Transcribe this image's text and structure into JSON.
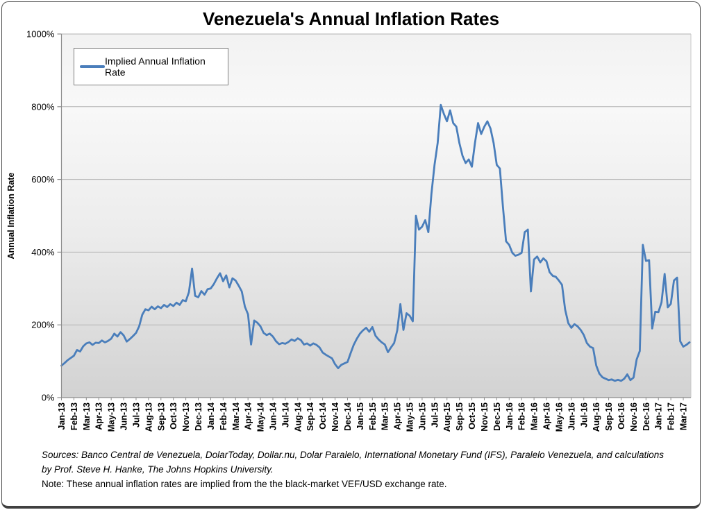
{
  "title": "Venezuela's Annual Inflation Rates",
  "legend": {
    "label": "Implied Annual Inflation Rate"
  },
  "y_axis": {
    "title": "Annual Inflation Rate",
    "ticks": [
      {
        "value": 0,
        "label": "0%"
      },
      {
        "value": 200,
        "label": "200%"
      },
      {
        "value": 400,
        "label": "400%"
      },
      {
        "value": 600,
        "label": "600%"
      },
      {
        "value": 800,
        "label": "800%"
      },
      {
        "value": 1000,
        "label": "1000%"
      }
    ]
  },
  "x_axis": {
    "labels": [
      "Jan-13",
      "Feb-13",
      "Mar-13",
      "Apr-13",
      "May-13",
      "Jun-13",
      "Jul-13",
      "Aug-13",
      "Sep-13",
      "Oct-13",
      "Nov-13",
      "Dec-13",
      "Jan-14",
      "Feb-14",
      "Mar-14",
      "Apr-14",
      "May-14",
      "Jun-14",
      "Jul-14",
      "Aug-14",
      "Sep-14",
      "Oct-14",
      "Nov-14",
      "Dec-14",
      "Jan-15",
      "Feb-15",
      "Mar-15",
      "Apr-15",
      "May-15",
      "Jun-15",
      "Jul-15",
      "Aug-15",
      "Sep-15",
      "Oct-15",
      "Nov-15",
      "Dec-15",
      "Jan-16",
      "Feb-16",
      "Mar-16",
      "Apr-16",
      "May-16",
      "Jun-16",
      "Jul-16",
      "Aug-16",
      "Sep-16",
      "Oct-16",
      "Nov-16",
      "Dec-16",
      "Jan-17",
      "Feb-17",
      "Mar-17"
    ]
  },
  "footer": {
    "sources": "Sources: Banco Central de Venezuela, DolarToday, Dollar.nu, Dolar Paralelo, International Monetary Fund (IFS), Paralelo Venezuela, and calculations by Prof. Steve H. Hanke, The Johns Hopkins University.",
    "note": "Note: These annual inflation rates are implied from the the black-market VEF/USD exchange rate."
  },
  "colors": {
    "line": "#4a7ebb",
    "gridline": "#b3b3b3",
    "axis": "#8c8c8c",
    "plot_right_edge": "#c9c9c9",
    "frame_border": "#4d4d4d",
    "legend_border": "#7f7f7f",
    "text": "#000000"
  },
  "chart_data": {
    "type": "line",
    "title": "Venezuela's Annual Inflation Rates",
    "xlabel": "",
    "ylabel": "Annual Inflation Rate",
    "ylim": [
      0,
      1000
    ],
    "y_tick_step": 200,
    "y_unit": "%",
    "x_range": [
      "Jan-13",
      "Mar-17"
    ],
    "points_per_month": 4,
    "grid": "horizontal",
    "legend_position": "top-left-inside",
    "series": [
      {
        "name": "Implied Annual Inflation Rate",
        "values": [
          88,
          95,
          103,
          109,
          115,
          131,
          127,
          141,
          149,
          152,
          145,
          151,
          150,
          157,
          152,
          156,
          162,
          176,
          168,
          180,
          171,
          154,
          161,
          169,
          178,
          196,
          228,
          243,
          240,
          250,
          243,
          251,
          246,
          255,
          249,
          257,
          252,
          261,
          255,
          268,
          265,
          290,
          355,
          280,
          276,
          293,
          283,
          298,
          300,
          312,
          328,
          342,
          320,
          336,
          303,
          328,
          322,
          308,
          292,
          250,
          229,
          146,
          212,
          206,
          196,
          178,
          172,
          176,
          168,
          155,
          147,
          150,
          148,
          153,
          160,
          156,
          163,
          158,
          146,
          149,
          143,
          149,
          145,
          138,
          124,
          118,
          113,
          108,
          92,
          81,
          90,
          94,
          98,
          122,
          145,
          162,
          176,
          185,
          192,
          181,
          194,
          170,
          160,
          152,
          146,
          125,
          138,
          150,
          185,
          257,
          186,
          232,
          225,
          210,
          500,
          462,
          470,
          488,
          455,
          560,
          640,
          700,
          805,
          780,
          760,
          790,
          755,
          745,
          700,
          665,
          645,
          655,
          635,
          700,
          755,
          725,
          745,
          760,
          740,
          700,
          640,
          630,
          525,
          430,
          420,
          398,
          390,
          393,
          398,
          455,
          462,
          292,
          380,
          388,
          372,
          383,
          375,
          345,
          335,
          332,
          322,
          310,
          242,
          205,
          192,
          202,
          196,
          186,
          172,
          150,
          140,
          136,
          88,
          66,
          56,
          52,
          48,
          50,
          46,
          49,
          46,
          52,
          64,
          48,
          55,
          105,
          128,
          420,
          376,
          378,
          190,
          236,
          235,
          262,
          340,
          248,
          258,
          322,
          330,
          155,
          140,
          145,
          152
        ]
      }
    ]
  }
}
